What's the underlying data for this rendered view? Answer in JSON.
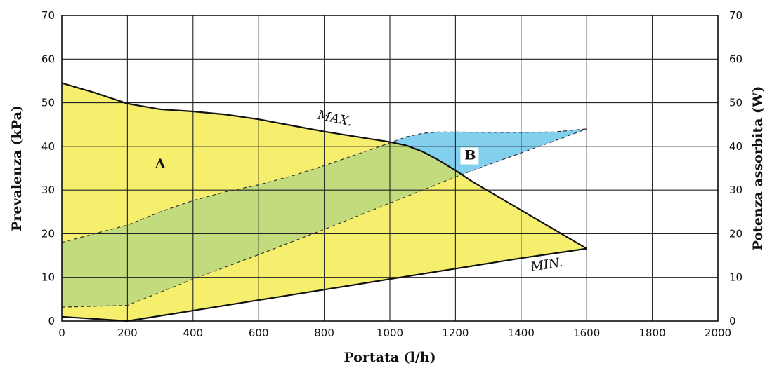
{
  "chart_data": {
    "type": "area",
    "xlabel": "Portata (l/h)",
    "ylabel_left": "Prevalenza (kPa)",
    "ylabel_right": "Potenza assorbita (W)",
    "xlim": [
      0,
      2000
    ],
    "ylim_left": [
      0,
      70
    ],
    "ylim_right": [
      0,
      70
    ],
    "x_ticks": [
      "0",
      "200",
      "400",
      "600",
      "800",
      "1000",
      "1200",
      "1400",
      "1600",
      "1800",
      "2000"
    ],
    "y_ticks_left": [
      "0",
      "10",
      "20",
      "30",
      "40",
      "50",
      "60",
      "70"
    ],
    "y_ticks_right": [
      "0",
      "10",
      "20",
      "30",
      "40",
      "50",
      "60",
      "70"
    ],
    "grid": true,
    "colors": {
      "region_A": "#f6ef6d",
      "overlap": "#c2db7c",
      "region_B": "#82cfee",
      "curve": "#111111"
    },
    "series": [
      {
        "name": "MAX.",
        "axis": "left",
        "style": "solid",
        "x": [
          0,
          100,
          200,
          300,
          400,
          500,
          600,
          700,
          800,
          900,
          1000,
          1050,
          1100,
          1150,
          1200,
          1250,
          1300,
          1400,
          1500,
          1600
        ],
        "y": [
          54.5,
          52.3,
          49.8,
          48.5,
          48,
          47.3,
          46.2,
          44.8,
          43.4,
          42.2,
          41,
          40.2,
          38.8,
          36.8,
          34.5,
          32,
          29.8,
          25.4,
          21,
          16.6
        ]
      },
      {
        "name": "MIN.",
        "axis": "left",
        "style": "solid",
        "x": [
          0,
          200,
          400,
          600,
          800,
          1000,
          1200,
          1400,
          1600
        ],
        "y": [
          1,
          0,
          2.4,
          4.8,
          7.2,
          9.6,
          12,
          14.4,
          16.6
        ]
      },
      {
        "name": "",
        "axis": "right",
        "style": "dashed",
        "x": [
          0,
          100,
          200,
          300,
          400,
          500,
          600,
          700,
          800,
          900,
          1000,
          1050,
          1100,
          1150,
          1200,
          1300,
          1400,
          1500,
          1600
        ],
        "y": [
          18,
          20,
          22,
          25,
          27.6,
          29.6,
          31.2,
          33.2,
          35.6,
          38.2,
          40.8,
          42.2,
          43,
          43.3,
          43.3,
          43.2,
          43.2,
          43.3,
          44
        ]
      },
      {
        "name": "",
        "axis": "right",
        "style": "dashed",
        "x": [
          0,
          200,
          400,
          600,
          800,
          1000,
          1200,
          1300,
          1400,
          1500,
          1600
        ],
        "y": [
          3.2,
          3.6,
          9.6,
          15.2,
          21,
          27,
          33,
          35.8,
          38.5,
          41.2,
          44
        ]
      }
    ],
    "annotations": [
      {
        "text": "A",
        "x": 300,
        "y": 35
      },
      {
        "text": "B",
        "x": 1245,
        "y": 37
      },
      {
        "text": "MAX.",
        "x": 830,
        "y": 45.5
      },
      {
        "text": "MIN.",
        "x": 1480,
        "y": 12
      }
    ]
  }
}
